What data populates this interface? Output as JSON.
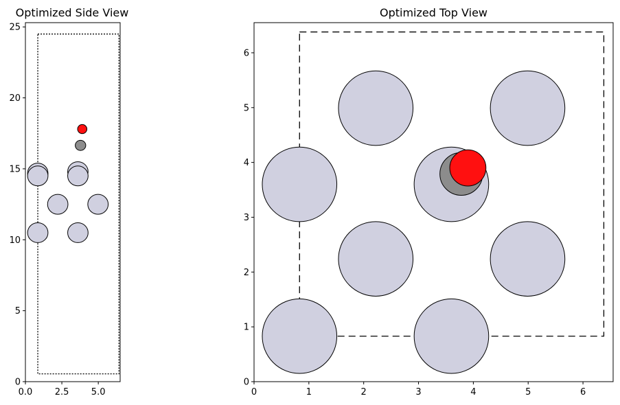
{
  "chart_data": [
    {
      "type": "scatter",
      "title": "Optimized Side View",
      "xlim": [
        0,
        6.5
      ],
      "ylim": [
        0,
        25.3
      ],
      "xticks": [
        0,
        2.5,
        5
      ],
      "xtick_labels": [
        "0.0",
        "2.5",
        "5.0"
      ],
      "yticks": [
        0,
        5,
        10,
        15,
        20,
        25
      ],
      "ytick_labels": [
        "0",
        "5",
        "10",
        "15",
        "20",
        "25"
      ],
      "cell_outline": {
        "style": "dotted",
        "x": [
          0.85,
          6.42
        ],
        "y": [
          0.55,
          24.5
        ]
      },
      "atoms": [
        {
          "x": 0.85,
          "y": 10.5,
          "r": 0.7,
          "color": "#d0d0e0"
        },
        {
          "x": 3.6,
          "y": 10.5,
          "r": 0.7,
          "color": "#d0d0e0"
        },
        {
          "x": 2.22,
          "y": 12.5,
          "r": 0.7,
          "color": "#d0d0e0"
        },
        {
          "x": 4.98,
          "y": 12.5,
          "r": 0.7,
          "color": "#d0d0e0"
        },
        {
          "x": 0.85,
          "y": 14.7,
          "r": 0.7,
          "color": "#d0d0e0"
        },
        {
          "x": 3.6,
          "y": 14.8,
          "r": 0.7,
          "color": "#d0d0e0"
        },
        {
          "x": 0.85,
          "y": 14.5,
          "r": 0.7,
          "color": "#d0d0e0"
        },
        {
          "x": 3.6,
          "y": 14.5,
          "r": 0.7,
          "color": "#d0d0e0"
        },
        {
          "x": 3.78,
          "y": 16.65,
          "r": 0.36,
          "color": "#8c8c8c"
        },
        {
          "x": 3.9,
          "y": 17.8,
          "r": 0.32,
          "color": "#ff1010"
        }
      ]
    },
    {
      "type": "scatter",
      "title": "Optimized Top View",
      "xlim": [
        0,
        6.55
      ],
      "ylim": [
        0,
        6.55
      ],
      "xticks": [
        0,
        1,
        2,
        3,
        4,
        5,
        6
      ],
      "xtick_labels": [
        "0",
        "1",
        "2",
        "3",
        "4",
        "5",
        "6"
      ],
      "yticks": [
        0,
        1,
        2,
        3,
        4,
        5,
        6
      ],
      "ytick_labels": [
        "0",
        "1",
        "2",
        "3",
        "4",
        "5",
        "6"
      ],
      "cell_outline": {
        "style": "dashed",
        "x": [
          0.83,
          6.38
        ],
        "y": [
          0.83,
          6.38
        ]
      },
      "atoms": [
        {
          "x": 0.83,
          "y": 0.83,
          "r": 0.68,
          "color": "#d0d0e0"
        },
        {
          "x": 3.6,
          "y": 0.83,
          "r": 0.68,
          "color": "#d0d0e0"
        },
        {
          "x": 2.22,
          "y": 2.24,
          "r": 0.68,
          "color": "#d0d0e0"
        },
        {
          "x": 4.99,
          "y": 2.24,
          "r": 0.68,
          "color": "#d0d0e0"
        },
        {
          "x": 0.83,
          "y": 3.6,
          "r": 0.68,
          "color": "#d0d0e0"
        },
        {
          "x": 3.6,
          "y": 3.6,
          "r": 0.68,
          "color": "#d0d0e0"
        },
        {
          "x": 2.22,
          "y": 4.99,
          "r": 0.68,
          "color": "#d0d0e0"
        },
        {
          "x": 4.99,
          "y": 4.99,
          "r": 0.68,
          "color": "#d0d0e0"
        },
        {
          "x": 3.78,
          "y": 3.79,
          "r": 0.39,
          "color": "#8c8c8c"
        },
        {
          "x": 3.9,
          "y": 3.9,
          "r": 0.33,
          "color": "#ff1010"
        }
      ]
    }
  ]
}
